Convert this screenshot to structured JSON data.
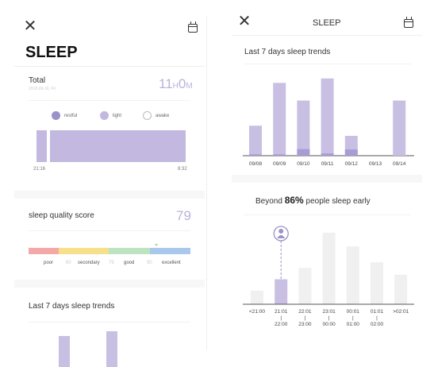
{
  "left": {
    "title": "SLEEP",
    "total": {
      "label": "Total",
      "date": "2018-09-16, Fri",
      "hours": "11",
      "h_unit": "H",
      "minutes": "0",
      "m_unit": "M"
    },
    "legend": [
      {
        "label": "restful",
        "color": "#9b92c9"
      },
      {
        "label": "light",
        "color": "#c2b8e0"
      },
      {
        "label": "awake",
        "color": "#ffffff"
      }
    ],
    "timeline": {
      "start": "21:16",
      "end": "8:32"
    },
    "quality": {
      "label": "sleep quality score",
      "score": "79",
      "score_value": 79,
      "segments": [
        {
          "label": "poor",
          "color": "#f3a9a7"
        },
        {
          "label": "secondary",
          "color": "#f6e08a"
        },
        {
          "label": "good",
          "color": "#bde3c0"
        },
        {
          "label": "excellent",
          "color": "#a9c8ec"
        }
      ],
      "thresholds": [
        "60",
        "75",
        "90"
      ]
    },
    "trends_title": "Last 7 days sleep trends"
  },
  "right": {
    "title": "SLEEP",
    "trends_title": "Last 7 days sleep trends",
    "beyond": {
      "prefix": "Beyond",
      "percent": "86%",
      "suffix": "people sleep early"
    }
  },
  "colors": {
    "light_bar": "#c8bfe3",
    "deep_bar": "#a89dd2",
    "grey_bar": "#f0f0f0",
    "accent": "#9b92c9"
  },
  "chart_data": [
    {
      "type": "bar",
      "title": "Last 7 days sleep trends",
      "categories": [
        "09/08",
        "09/09",
        "09/10",
        "09/11",
        "09/12",
        "09/13",
        "09/14"
      ],
      "series": [
        {
          "values": [
            6.8,
            16.5,
            12.5,
            17.5,
            4.5,
            0,
            12.5
          ]
        },
        {
          "values": [
            0.3,
            0.3,
            1.5,
            0.5,
            1.4,
            0,
            0
          ]
        }
      ]
    },
    {
      "type": "bar",
      "categories": [
        "<21:00",
        "21:01\n|\n22:00",
        "22:01\n|\n23:00",
        "23:01\n|\n00:00",
        "00:01\n|\n01:00",
        "01:01\n|\n02:00",
        ">02:01"
      ],
      "values": [
        12,
        22,
        32,
        63,
        51,
        37,
        26
      ],
      "highlight": 1
    }
  ]
}
